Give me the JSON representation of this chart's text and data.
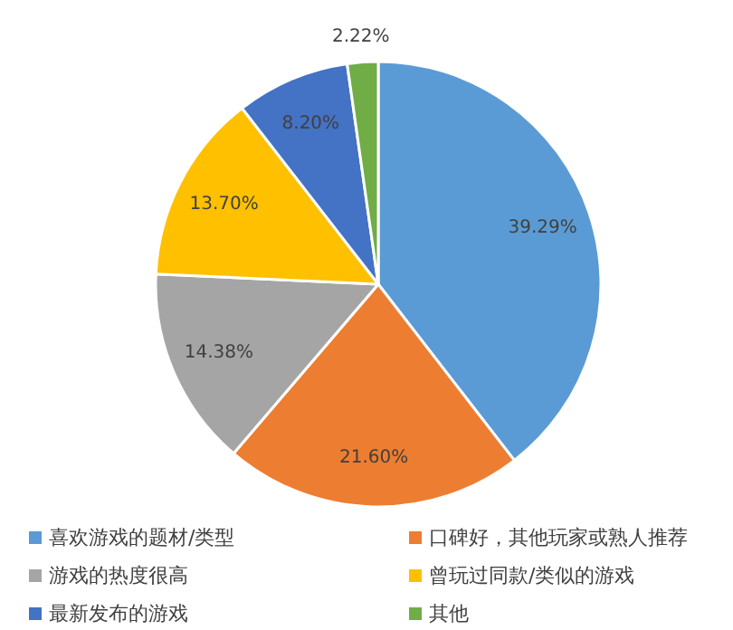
{
  "chart_data": {
    "type": "pie",
    "categories": [
      "喜欢游戏的题材/类型",
      "口碑好，其他玩家或熟人推荐",
      "游戏的热度很高",
      "曾玩过同款/类似的游戏",
      "最新发布的游戏",
      "其他"
    ],
    "values": [
      39.29,
      21.6,
      14.38,
      13.7,
      8.2,
      2.22
    ],
    "value_labels": [
      "39.29%",
      "21.60%",
      "14.38%",
      "13.70%",
      "8.20%",
      "2.22%"
    ],
    "colors": [
      "#5b9bd5",
      "#ed7d31",
      "#a5a5a5",
      "#ffc000",
      "#4472c4",
      "#70ad47"
    ],
    "legend": "bottom"
  }
}
